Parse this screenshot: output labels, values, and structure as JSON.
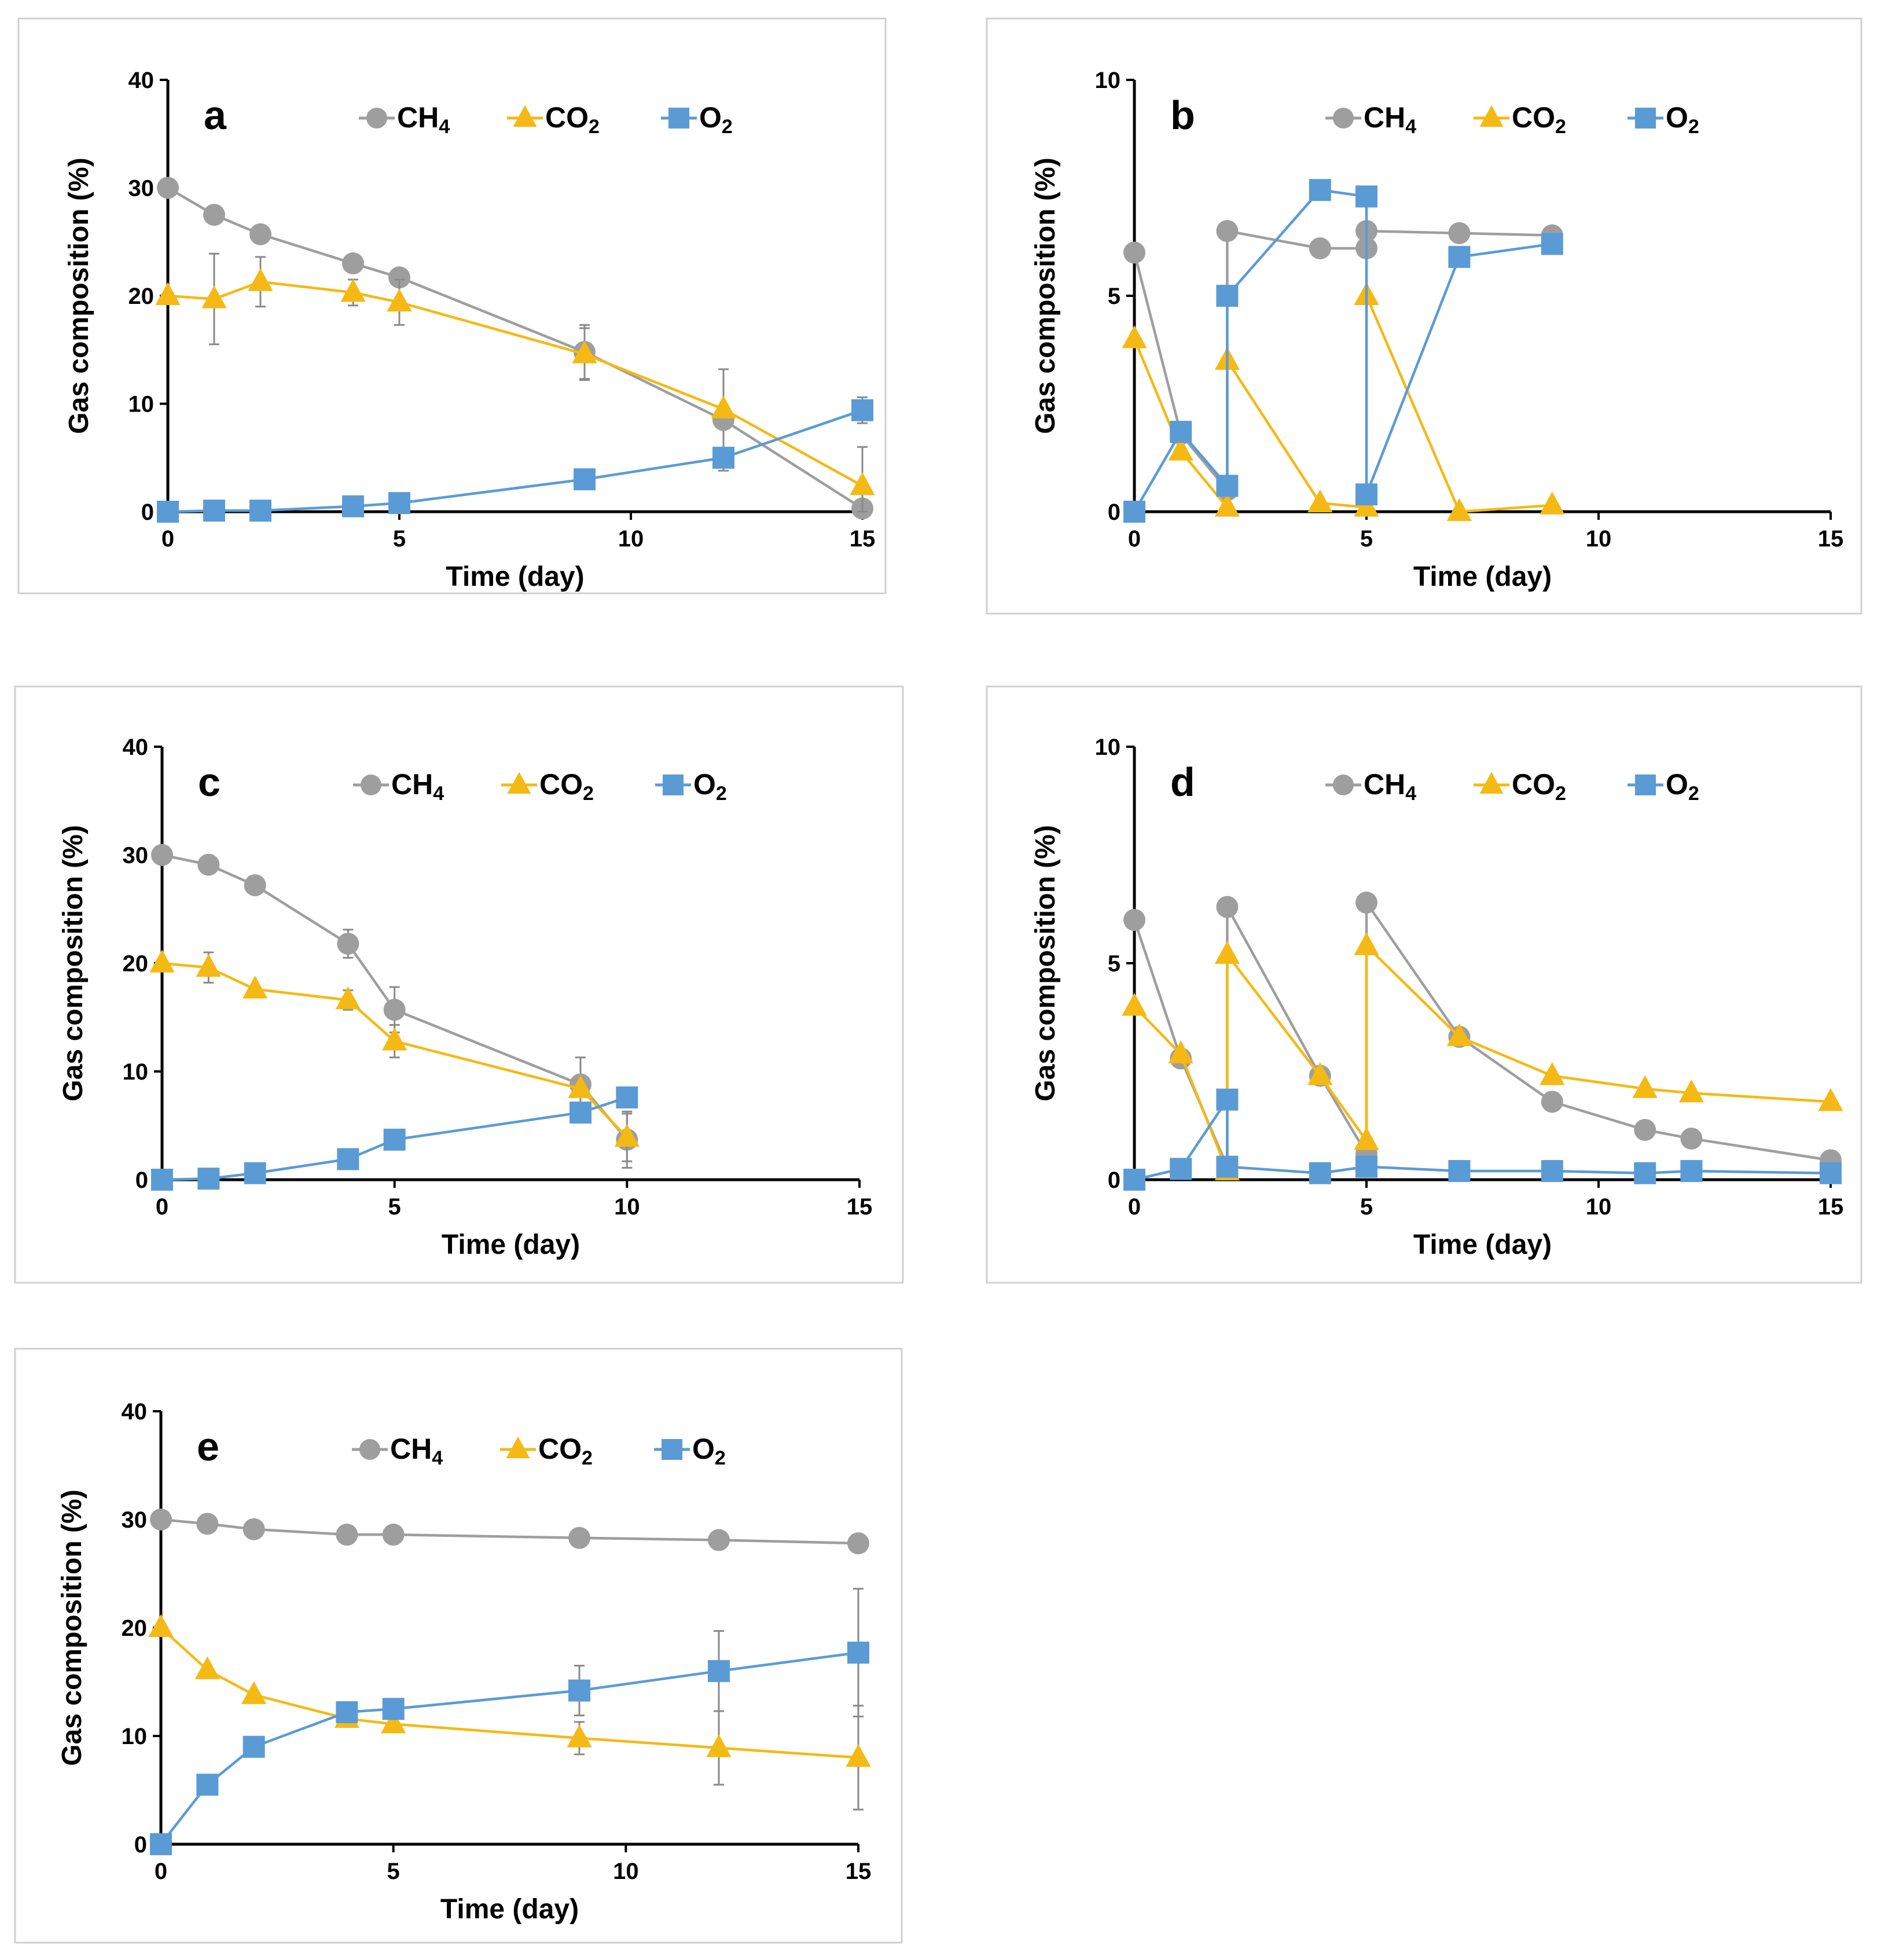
{
  "colors": {
    "CH4": "#9e9e9e",
    "CO2": "#f5b915",
    "O2": "#5b9bd5",
    "error_bar": "#8a8a8a"
  },
  "chart_data": [
    {
      "type": "line",
      "panel": "a",
      "xlabel": "Time (day)",
      "ylabel": "Gas composition (%)",
      "xlim": [
        0,
        15
      ],
      "xticks": [
        "0",
        "5",
        "10",
        "15"
      ],
      "ylim": [
        0,
        40
      ],
      "yticks": [
        "0",
        "10",
        "20",
        "30",
        "40"
      ],
      "legend": {
        "placement": "top",
        "entries": [
          {
            "main": "CH",
            "sub": "4",
            "series": "CH4",
            "marker": "circle"
          },
          {
            "main": "CO",
            "sub": "2",
            "series": "CO2",
            "marker": "triangle"
          },
          {
            "main": "O",
            "sub": "2",
            "series": "O2",
            "marker": "square"
          }
        ]
      },
      "series": [
        {
          "name": "CH4",
          "marker": "circle",
          "x": [
            0,
            1,
            2,
            4,
            5,
            9,
            12,
            15
          ],
          "y": [
            30,
            27.5,
            25.7,
            23,
            21.7,
            14.8,
            8.5,
            0.3
          ],
          "err": [
            0,
            0,
            0,
            0,
            0,
            2.5,
            4.7,
            0
          ]
        },
        {
          "name": "CO2",
          "marker": "triangle",
          "x": [
            0,
            1,
            2,
            4,
            5,
            9,
            12,
            15
          ],
          "y": [
            20,
            19.7,
            21.3,
            20.3,
            19.4,
            14.6,
            9.5,
            2.4
          ],
          "err": [
            0,
            4.2,
            2.3,
            1.2,
            2.1,
            2.4,
            0,
            3.6
          ]
        },
        {
          "name": "O2",
          "marker": "square",
          "x": [
            0,
            1,
            2,
            4,
            5,
            9,
            12,
            15
          ],
          "y": [
            0,
            0.1,
            0.1,
            0.5,
            0.8,
            3.0,
            5.0,
            9.4
          ],
          "err": [
            0,
            0,
            0,
            0,
            0,
            0,
            0,
            1.2
          ]
        }
      ]
    },
    {
      "type": "line",
      "panel": "b",
      "xlabel": "Time (day)",
      "ylabel": "Gas composition (%)",
      "xlim": [
        0,
        15
      ],
      "xticks": [
        "0",
        "5",
        "10",
        "15"
      ],
      "ylim": [
        0,
        10
      ],
      "yticks": [
        "0",
        "5",
        "10"
      ],
      "legend": {
        "placement": "top",
        "entries": [
          {
            "main": "CH",
            "sub": "4",
            "series": "CH4",
            "marker": "circle"
          },
          {
            "main": "CO",
            "sub": "2",
            "series": "CO2",
            "marker": "triangle"
          },
          {
            "main": "O",
            "sub": "2",
            "series": "O2",
            "marker": "square"
          }
        ]
      },
      "series": [
        {
          "name": "CH4",
          "marker": "circle",
          "x": [
            0,
            1,
            2,
            2,
            4,
            5,
            5,
            7,
            9
          ],
          "y": [
            6.0,
            1.8,
            0.5,
            6.5,
            6.1,
            6.1,
            6.5,
            6.45,
            6.4
          ]
        },
        {
          "name": "CO2",
          "marker": "triangle",
          "x": [
            0,
            1,
            2,
            2,
            4,
            5,
            5,
            7,
            9
          ],
          "y": [
            4.0,
            1.4,
            0.1,
            3.5,
            0.2,
            0.1,
            5.0,
            0.0,
            0.15
          ]
        },
        {
          "name": "O2",
          "marker": "square",
          "x": [
            0,
            1,
            2,
            2,
            4,
            5,
            5,
            7,
            9
          ],
          "y": [
            0,
            1.85,
            0.6,
            5.0,
            7.45,
            7.3,
            0.4,
            5.9,
            6.2
          ]
        }
      ]
    },
    {
      "type": "line",
      "panel": "c",
      "xlabel": "Time (day)",
      "ylabel": "Gas composition (%)",
      "xlim": [
        0,
        15
      ],
      "xticks": [
        "0",
        "5",
        "10",
        "15"
      ],
      "ylim": [
        0,
        40
      ],
      "yticks": [
        "0",
        "10",
        "20",
        "30",
        "40"
      ],
      "legend": {
        "placement": "top",
        "entries": [
          {
            "main": "CH",
            "sub": "4",
            "series": "CH4",
            "marker": "circle"
          },
          {
            "main": "CO",
            "sub": "2",
            "series": "CO2",
            "marker": "triangle"
          },
          {
            "main": "O",
            "sub": "2",
            "series": "O2",
            "marker": "square"
          }
        ]
      },
      "series": [
        {
          "name": "CH4",
          "marker": "circle",
          "x": [
            0,
            1,
            2,
            4,
            5,
            9,
            10
          ],
          "y": [
            30,
            29.1,
            27.2,
            21.8,
            15.7,
            8.8,
            3.7
          ],
          "err": [
            0,
            0,
            0,
            1.3,
            2.1,
            2.5,
            2.6
          ]
        },
        {
          "name": "CO2",
          "marker": "triangle",
          "x": [
            0,
            1,
            2,
            4,
            5,
            9,
            10
          ],
          "y": [
            20,
            19.6,
            17.6,
            16.6,
            12.8,
            8.4,
            3.9
          ],
          "err": [
            0,
            1.4,
            0,
            0.9,
            1.5,
            0,
            2.2
          ]
        },
        {
          "name": "O2",
          "marker": "square",
          "x": [
            0,
            1,
            2,
            4,
            5,
            9,
            10
          ],
          "y": [
            0,
            0.1,
            0.6,
            1.9,
            3.7,
            6.2,
            7.6
          ],
          "err": [
            0,
            0,
            0,
            0,
            0,
            0,
            0
          ]
        }
      ]
    },
    {
      "type": "line",
      "panel": "d",
      "xlabel": "Time (day)",
      "ylabel": "Gas composition (%)",
      "xlim": [
        0,
        15
      ],
      "xticks": [
        "0",
        "5",
        "10",
        "15"
      ],
      "ylim": [
        0,
        10
      ],
      "yticks": [
        "0",
        "5",
        "10"
      ],
      "legend": {
        "placement": "top",
        "entries": [
          {
            "main": "CH",
            "sub": "4",
            "series": "CH4",
            "marker": "circle"
          },
          {
            "main": "CO",
            "sub": "2",
            "series": "CO2",
            "marker": "triangle"
          },
          {
            "main": "O",
            "sub": "2",
            "series": "O2",
            "marker": "square"
          }
        ]
      },
      "series": [
        {
          "name": "CH4",
          "marker": "circle",
          "x": [
            0,
            1,
            2,
            2,
            4,
            5,
            5,
            7,
            9,
            11,
            12,
            15
          ],
          "y": [
            6.0,
            2.8,
            0.3,
            6.3,
            2.4,
            0.6,
            6.4,
            3.3,
            1.8,
            1.15,
            0.95,
            0.45
          ]
        },
        {
          "name": "CO2",
          "marker": "triangle",
          "x": [
            0,
            1,
            2,
            2,
            4,
            5,
            5,
            7,
            9,
            11,
            12,
            15
          ],
          "y": [
            4.0,
            2.9,
            0.2,
            5.2,
            2.4,
            0.9,
            5.4,
            3.3,
            2.4,
            2.1,
            2.0,
            1.8
          ]
        },
        {
          "name": "O2",
          "marker": "square",
          "x": [
            0,
            1,
            2,
            2,
            4,
            5,
            7,
            9,
            11,
            12,
            15
          ],
          "y": [
            0,
            0.25,
            1.85,
            0.3,
            0.15,
            0.3,
            0.2,
            0.2,
            0.15,
            0.2,
            0.15
          ]
        }
      ]
    },
    {
      "type": "line",
      "panel": "e",
      "xlabel": "Time (day)",
      "ylabel": "Gas composition (%)",
      "xlim": [
        0,
        15
      ],
      "xticks": [
        "0",
        "5",
        "10",
        "15"
      ],
      "ylim": [
        0,
        40
      ],
      "yticks": [
        "0",
        "10",
        "20",
        "30",
        "40"
      ],
      "legend": {
        "placement": "top",
        "entries": [
          {
            "main": "CH",
            "sub": "4",
            "series": "CH4",
            "marker": "circle"
          },
          {
            "main": "CO",
            "sub": "2",
            "series": "CO2",
            "marker": "triangle"
          },
          {
            "main": "O",
            "sub": "2",
            "series": "O2",
            "marker": "square"
          }
        ]
      },
      "series": [
        {
          "name": "CH4",
          "marker": "circle",
          "x": [
            0,
            1,
            2,
            4,
            5,
            9,
            12,
            15
          ],
          "y": [
            30,
            29.6,
            29.1,
            28.6,
            28.6,
            28.3,
            28.1,
            27.8
          ],
          "err": [
            0,
            0,
            0,
            0,
            0,
            0,
            0,
            0
          ]
        },
        {
          "name": "CO2",
          "marker": "triangle",
          "x": [
            0,
            1,
            2,
            4,
            5,
            9,
            12,
            15
          ],
          "y": [
            20,
            16.1,
            13.8,
            11.6,
            11.1,
            9.8,
            8.9,
            8.0
          ],
          "err": [
            0,
            0,
            0,
            0,
            0,
            1.5,
            3.4,
            4.8
          ]
        },
        {
          "name": "O2",
          "marker": "square",
          "x": [
            0,
            1,
            2,
            4,
            5,
            9,
            12,
            15
          ],
          "y": [
            0,
            5.5,
            9.0,
            12.2,
            12.5,
            14.2,
            16.0,
            17.7
          ],
          "err": [
            0,
            0,
            0,
            0,
            0,
            2.3,
            3.7,
            5.9
          ]
        }
      ]
    }
  ]
}
